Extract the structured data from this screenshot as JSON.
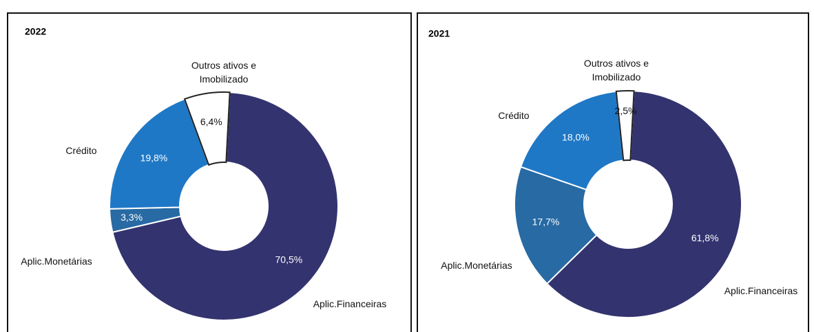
{
  "chart_data": [
    {
      "type": "pie",
      "title": "2022",
      "categories": [
        "Aplic.Financeiras",
        "Aplic.Monetárias",
        "Crédito",
        "Outros ativos e Imobilizado"
      ],
      "values": [
        70.5,
        3.3,
        19.8,
        6.4
      ],
      "value_labels": [
        "70,5%",
        "3,3%",
        "19,8%",
        "6,4%"
      ],
      "colors": [
        "#33336f",
        "#286aa3",
        "#1f78c6",
        "#ffffff"
      ]
    },
    {
      "type": "pie",
      "title": "2021",
      "categories": [
        "Aplic.Financeiras",
        "Aplic.Monetárias",
        "Crédito",
        "Outros ativos e Imobilizado"
      ],
      "values": [
        61.8,
        17.7,
        18.0,
        2.5
      ],
      "value_labels": [
        "61,8%",
        "17,7%",
        "18,0%",
        "2,5%"
      ],
      "colors": [
        "#33336f",
        "#286aa3",
        "#1f78c6",
        "#ffffff"
      ]
    }
  ]
}
